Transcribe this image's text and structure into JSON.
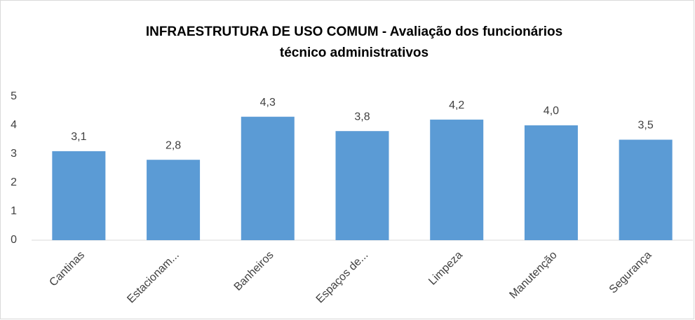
{
  "chart_data": {
    "type": "bar",
    "title": [
      "INFRAESTRUTURA DE USO COMUM - Avaliação dos funcionários",
      "técnico administrativos"
    ],
    "categories": [
      "Cantinas",
      "Estacionam...",
      "Banheiros",
      "Espaços de...",
      "Limpeza",
      "Manutenção",
      "Segurança"
    ],
    "values": [
      3.1,
      2.8,
      4.3,
      3.8,
      4.2,
      4.0,
      3.5
    ],
    "value_labels": [
      "3,1",
      "2,8",
      "4,3",
      "3,8",
      "4,2",
      "4,0",
      "3,5"
    ],
    "color": "#5b9bd5",
    "ylim": [
      0,
      5
    ],
    "yticks": [
      0,
      1,
      2,
      3,
      4,
      5
    ],
    "grid": false
  }
}
